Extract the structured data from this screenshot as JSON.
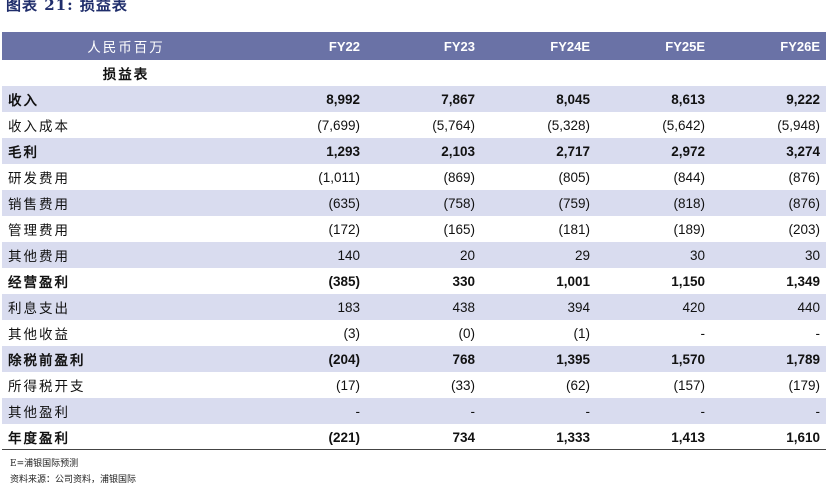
{
  "caption": "图表 21: 损益表",
  "header": {
    "unit": "人民币百万",
    "years": [
      "FY22",
      "FY23",
      "FY24E",
      "FY25E",
      "FY26E"
    ]
  },
  "section": "损益表",
  "rows": [
    {
      "label": "收入",
      "values": [
        "8,992",
        "7,867",
        "8,045",
        "8,613",
        "9,222"
      ],
      "bold": true,
      "shade": true
    },
    {
      "label": "收入成本",
      "values": [
        "(7,699)",
        "(5,764)",
        "(5,328)",
        "(5,642)",
        "(5,948)"
      ],
      "bold": false,
      "shade": false
    },
    {
      "label": "毛利",
      "values": [
        "1,293",
        "2,103",
        "2,717",
        "2,972",
        "3,274"
      ],
      "bold": true,
      "shade": true
    },
    {
      "label": "研发费用",
      "values": [
        "(1,011)",
        "(869)",
        "(805)",
        "(844)",
        "(876)"
      ],
      "bold": false,
      "shade": false
    },
    {
      "label": "销售费用",
      "values": [
        "(635)",
        "(758)",
        "(759)",
        "(818)",
        "(876)"
      ],
      "bold": false,
      "shade": true
    },
    {
      "label": "管理费用",
      "values": [
        "(172)",
        "(165)",
        "(181)",
        "(189)",
        "(203)"
      ],
      "bold": false,
      "shade": false
    },
    {
      "label": "其他费用",
      "values": [
        "140",
        "20",
        "29",
        "30",
        "30"
      ],
      "bold": false,
      "shade": true
    },
    {
      "label": "经营盈利",
      "values": [
        "(385)",
        "330",
        "1,001",
        "1,150",
        "1,349"
      ],
      "bold": true,
      "shade": false
    },
    {
      "label": "利息支出",
      "values": [
        "183",
        "438",
        "394",
        "420",
        "440"
      ],
      "bold": false,
      "shade": true
    },
    {
      "label": "其他收益",
      "values": [
        "(3)",
        "(0)",
        "(1)",
        "-",
        "-"
      ],
      "bold": false,
      "shade": false
    },
    {
      "label": "除税前盈利",
      "values": [
        "(204)",
        "768",
        "1,395",
        "1,570",
        "1,789"
      ],
      "bold": true,
      "shade": true
    },
    {
      "label": "所得税开支",
      "values": [
        "(17)",
        "(33)",
        "(62)",
        "(157)",
        "(179)"
      ],
      "bold": false,
      "shade": false
    },
    {
      "label": "其他盈利",
      "values": [
        "-",
        "-",
        "-",
        "-",
        "-"
      ],
      "bold": false,
      "shade": true
    },
    {
      "label": "年度盈利",
      "values": [
        "(221)",
        "734",
        "1,333",
        "1,413",
        "1,610"
      ],
      "bold": true,
      "shade": false
    }
  ],
  "footnotes": [
    "E=浦银国际预测",
    "资料来源：公司资料，浦银国际"
  ]
}
